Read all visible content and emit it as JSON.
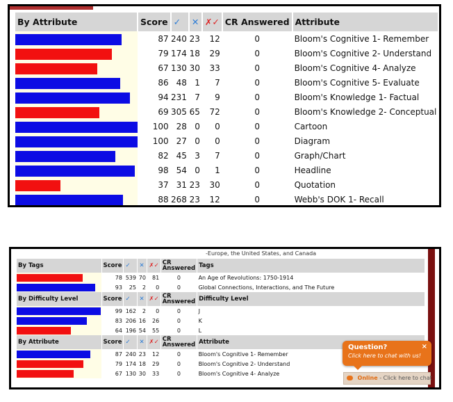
{
  "panel1": {
    "headers": {
      "attribute": "By Attribute",
      "score": "Score",
      "cr": "CR Answered",
      "label": "Attribute"
    },
    "icons": {
      "correct": "check-icon",
      "incorrect": "cross-icon",
      "partial": "partial-icon"
    },
    "rows": [
      {
        "score": "87",
        "correct": "240",
        "incorrect": "23",
        "partial": "12",
        "cr": "0",
        "label": "Bloom's Cognitive 1- Remember",
        "color": "blue",
        "level": 0.87
      },
      {
        "score": "79",
        "correct": "174",
        "incorrect": "18",
        "partial": "29",
        "cr": "0",
        "label": "Bloom's Cognitive 2- Understand",
        "color": "red",
        "level": 0.79
      },
      {
        "score": "67",
        "correct": "130",
        "incorrect": "30",
        "partial": "33",
        "cr": "0",
        "label": "Bloom's Cognitive 4- Analyze",
        "color": "red",
        "level": 0.67
      },
      {
        "score": "86",
        "correct": "48",
        "incorrect": "1",
        "partial": "7",
        "cr": "0",
        "label": "Bloom's Cognitive 5- Evaluate",
        "color": "blue",
        "level": 0.86
      },
      {
        "score": "94",
        "correct": "231",
        "incorrect": "7",
        "partial": "9",
        "cr": "0",
        "label": "Bloom's Knowledge 1- Factual",
        "color": "blue",
        "level": 0.94
      },
      {
        "score": "69",
        "correct": "305",
        "incorrect": "65",
        "partial": "72",
        "cr": "0",
        "label": "Bloom's Knowledge 2- Conceptual",
        "color": "red",
        "level": 0.69
      },
      {
        "score": "100",
        "correct": "28",
        "incorrect": "0",
        "partial": "0",
        "cr": "0",
        "label": "Cartoon",
        "color": "blue",
        "level": 1.0
      },
      {
        "score": "100",
        "correct": "27",
        "incorrect": "0",
        "partial": "0",
        "cr": "0",
        "label": "Diagram",
        "color": "blue",
        "level": 1.0
      },
      {
        "score": "82",
        "correct": "45",
        "incorrect": "3",
        "partial": "7",
        "cr": "0",
        "label": "Graph/Chart",
        "color": "blue",
        "level": 0.82
      },
      {
        "score": "98",
        "correct": "54",
        "incorrect": "0",
        "partial": "1",
        "cr": "0",
        "label": "Headline",
        "color": "blue",
        "level": 0.98
      },
      {
        "score": "37",
        "correct": "31",
        "incorrect": "23",
        "partial": "30",
        "cr": "0",
        "label": "Quotation",
        "color": "red",
        "level": 0.37
      },
      {
        "score": "88",
        "correct": "268",
        "incorrect": "23",
        "partial": "12",
        "cr": "0",
        "label": "Webb's DOK 1- Recall",
        "color": "blue",
        "level": 0.88
      }
    ]
  },
  "panel2": {
    "cut_text": "-Europe, the United States, and Canada",
    "sections": [
      {
        "headers": {
          "group": "By Tags",
          "score": "Score",
          "cr": "CR Answered",
          "label": "Tags"
        },
        "rows": [
          {
            "score": "78",
            "correct": "539",
            "incorrect": "70",
            "partial": "81",
            "cr": "0",
            "label": "An Age of Revolutions: 1750-1914",
            "color": "red",
            "level": 0.78
          },
          {
            "score": "93",
            "correct": "25",
            "incorrect": "2",
            "partial": "0",
            "cr": "0",
            "label": "Global Connections, Interactions, and The Future",
            "color": "blue",
            "level": 0.93
          }
        ]
      },
      {
        "headers": {
          "group": "By Difficulty Level",
          "score": "Score",
          "cr": "CR Answered",
          "label": "Difficulty Level"
        },
        "rows": [
          {
            "score": "99",
            "correct": "162",
            "incorrect": "2",
            "partial": "0",
            "cr": "0",
            "label": "J",
            "color": "blue",
            "level": 0.99
          },
          {
            "score": "83",
            "correct": "206",
            "incorrect": "16",
            "partial": "26",
            "cr": "0",
            "label": "K",
            "color": "blue",
            "level": 0.83
          },
          {
            "score": "64",
            "correct": "196",
            "incorrect": "54",
            "partial": "55",
            "cr": "0",
            "label": "L",
            "color": "red",
            "level": 0.64
          }
        ]
      },
      {
        "headers": {
          "group": "By Attribute",
          "score": "Score",
          "cr": "CR Answered",
          "label": "Attribute"
        },
        "rows": [
          {
            "score": "87",
            "correct": "240",
            "incorrect": "23",
            "partial": "12",
            "cr": "0",
            "label": "Bloom's Cognitive 1- Remember",
            "color": "blue",
            "level": 0.87
          },
          {
            "score": "79",
            "correct": "174",
            "incorrect": "18",
            "partial": "29",
            "cr": "0",
            "label": "Bloom's Cognitive 2- Understand",
            "color": "red",
            "level": 0.79
          },
          {
            "score": "67",
            "correct": "130",
            "incorrect": "30",
            "partial": "33",
            "cr": "0",
            "label": "Bloom's Cognitive 4- Analyze",
            "color": "red",
            "level": 0.67
          }
        ]
      }
    ]
  },
  "chat": {
    "question": "Question?",
    "subtitle": "Click here to chat with us!",
    "close": "×",
    "online": "Online",
    "online_rest": "- Click here to chat"
  },
  "colors": {
    "blue": "#0c0ce4",
    "red": "#f21010",
    "header_bg": "#d6d6d6",
    "bar_bg": "#fffde6",
    "chat": "#e8731a"
  }
}
